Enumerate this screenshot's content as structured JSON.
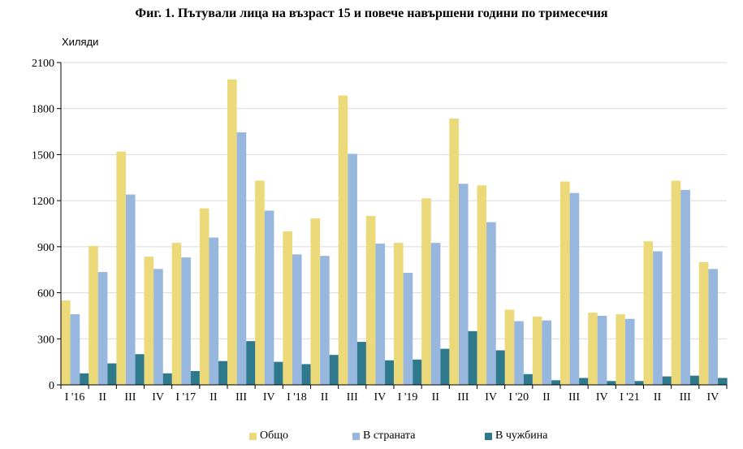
{
  "chart_data": {
    "type": "bar",
    "title": "Фиг. 1. Пътували лица на възраст 15 и повече навършени години по тримесечия",
    "ylabel": "Хиляди",
    "ylim": [
      0,
      2100
    ],
    "yticks": [
      "0",
      "300",
      "600",
      "900",
      "1200",
      "1500",
      "1800",
      "2100"
    ],
    "grid": true,
    "legend_position": "bottom",
    "categories": [
      "I '16",
      "II",
      "III",
      "IV",
      "I '17",
      "II",
      "III",
      "IV",
      "I '18",
      "II",
      "III",
      "IV",
      "I '19",
      "II",
      "III",
      "IV",
      "I '20",
      "II",
      "III",
      "IV",
      "I '21",
      "II",
      "III",
      "IV"
    ],
    "series": [
      {
        "name": "Общо",
        "color": "#ecd97a",
        "values": [
          550,
          905,
          1520,
          835,
          925,
          1150,
          1990,
          1330,
          1000,
          1085,
          1885,
          1100,
          925,
          1215,
          1735,
          1300,
          490,
          445,
          1325,
          470,
          460,
          935,
          1330,
          800
        ]
      },
      {
        "name": "В страната",
        "color": "#98b7de",
        "values": [
          460,
          735,
          1240,
          755,
          830,
          960,
          1645,
          1135,
          850,
          840,
          1505,
          920,
          730,
          925,
          1310,
          1060,
          415,
          420,
          1250,
          450,
          430,
          870,
          1270,
          755
        ]
      },
      {
        "name": "В чужбина",
        "color": "#2e7a8c",
        "values": [
          75,
          140,
          200,
          75,
          90,
          155,
          285,
          150,
          135,
          195,
          280,
          160,
          165,
          235,
          350,
          225,
          70,
          30,
          45,
          25,
          25,
          55,
          60,
          45
        ]
      }
    ]
  }
}
